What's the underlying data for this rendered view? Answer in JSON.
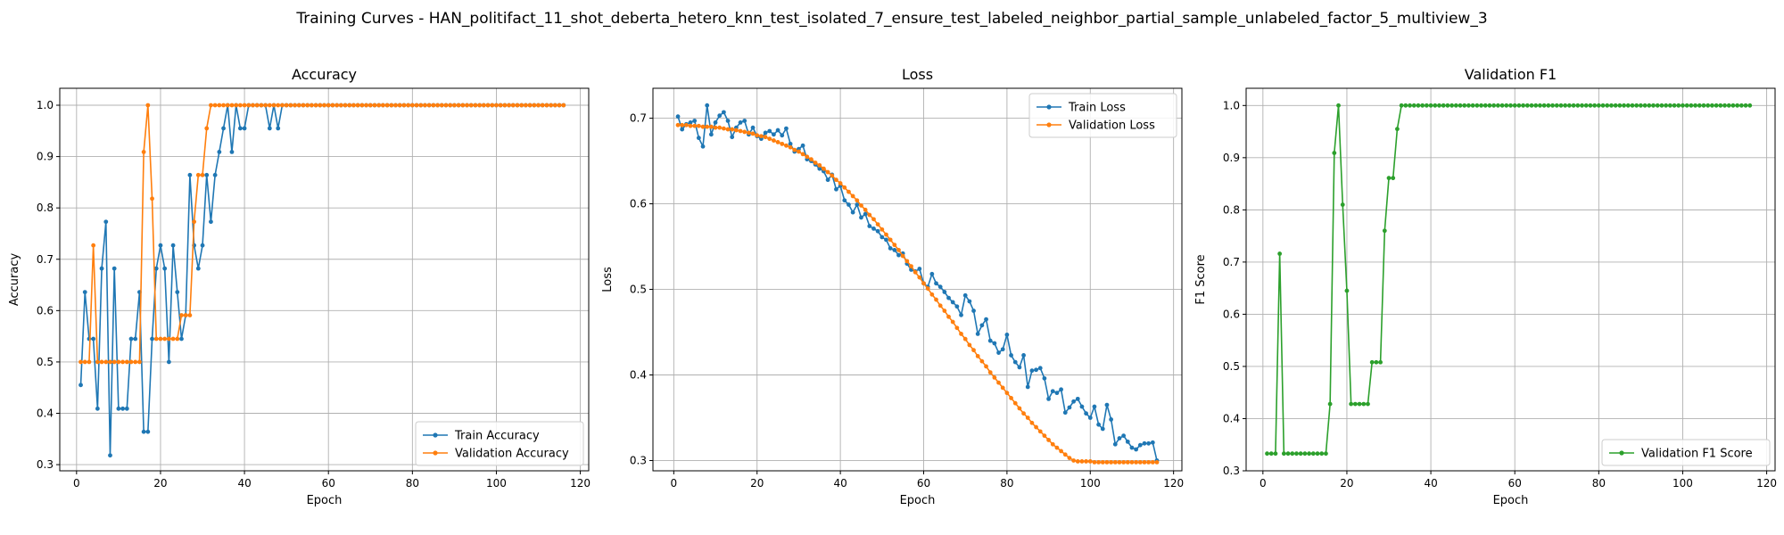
{
  "figure": {
    "title": "Training Curves - HAN_politifact_11_shot_deberta_hetero_knn_test_isolated_7_ensure_test_labeled_neighbor_partial_sample_unlabeled_factor_5_multiview_3"
  },
  "chart_data": [
    {
      "type": "line",
      "title": "Accuracy",
      "xlabel": "Epoch",
      "ylabel": "Accuracy",
      "xlim": [
        -4,
        122
      ],
      "ylim": [
        0.288,
        1.033
      ],
      "xticks": [
        0,
        20,
        40,
        60,
        80,
        100,
        120
      ],
      "yticks": [
        0.3,
        0.4,
        0.5,
        0.6,
        0.7,
        0.8,
        0.9,
        1.0
      ],
      "ytick_labels": [
        "0.3",
        "0.4",
        "0.5",
        "0.6",
        "0.7",
        "0.8",
        "0.9",
        "1.0"
      ],
      "grid": true,
      "legend_position": "lower-right",
      "series": [
        {
          "name": "Train Accuracy",
          "color": "#1f77b4",
          "values": [
            0.455,
            0.636,
            0.545,
            0.545,
            0.409,
            0.682,
            0.773,
            0.318,
            0.682,
            0.409,
            0.409,
            0.409,
            0.545,
            0.545,
            0.636,
            0.364,
            0.364,
            0.545,
            0.682,
            0.727,
            0.682,
            0.5,
            0.727,
            0.636,
            0.545,
            0.591,
            0.864,
            0.727,
            0.682,
            0.727,
            0.864,
            0.773,
            0.864,
            0.909,
            0.955,
            1.0,
            0.909,
            1.0,
            0.955,
            0.955,
            1.0,
            1.0,
            1.0,
            1.0,
            1.0,
            0.955,
            1.0,
            0.955,
            1.0,
            1.0,
            1.0,
            1.0,
            1.0,
            1.0,
            1.0,
            1.0,
            1.0,
            1.0,
            1.0,
            1.0,
            1.0,
            1.0,
            1.0,
            1.0,
            1.0,
            1.0,
            1.0,
            1.0,
            1.0,
            1.0,
            1.0,
            1.0,
            1.0,
            1.0,
            1.0,
            1.0,
            1.0,
            1.0,
            1.0,
            1.0,
            1.0,
            1.0,
            1.0,
            1.0,
            1.0,
            1.0,
            1.0,
            1.0,
            1.0,
            1.0,
            1.0,
            1.0,
            1.0,
            1.0,
            1.0,
            1.0,
            1.0,
            1.0,
            1.0,
            1.0,
            1.0,
            1.0,
            1.0,
            1.0,
            1.0,
            1.0,
            1.0,
            1.0,
            1.0,
            1.0,
            1.0,
            1.0,
            1.0,
            1.0,
            1.0,
            1.0
          ]
        },
        {
          "name": "Validation Accuracy",
          "color": "#ff7f0e",
          "values": [
            0.5,
            0.5,
            0.5,
            0.727,
            0.5,
            0.5,
            0.5,
            0.5,
            0.5,
            0.5,
            0.5,
            0.5,
            0.5,
            0.5,
            0.5,
            0.909,
            1.0,
            0.818,
            0.545,
            0.545,
            0.545,
            0.545,
            0.545,
            0.545,
            0.591,
            0.591,
            0.591,
            0.773,
            0.864,
            0.864,
            0.955,
            1.0,
            1.0,
            1.0,
            1.0,
            1.0,
            1.0,
            1.0,
            1.0,
            1.0,
            1.0,
            1.0,
            1.0,
            1.0,
            1.0,
            1.0,
            1.0,
            1.0,
            1.0,
            1.0,
            1.0,
            1.0,
            1.0,
            1.0,
            1.0,
            1.0,
            1.0,
            1.0,
            1.0,
            1.0,
            1.0,
            1.0,
            1.0,
            1.0,
            1.0,
            1.0,
            1.0,
            1.0,
            1.0,
            1.0,
            1.0,
            1.0,
            1.0,
            1.0,
            1.0,
            1.0,
            1.0,
            1.0,
            1.0,
            1.0,
            1.0,
            1.0,
            1.0,
            1.0,
            1.0,
            1.0,
            1.0,
            1.0,
            1.0,
            1.0,
            1.0,
            1.0,
            1.0,
            1.0,
            1.0,
            1.0,
            1.0,
            1.0,
            1.0,
            1.0,
            1.0,
            1.0,
            1.0,
            1.0,
            1.0,
            1.0,
            1.0,
            1.0,
            1.0,
            1.0,
            1.0,
            1.0,
            1.0,
            1.0,
            1.0,
            1.0
          ]
        }
      ]
    },
    {
      "type": "line",
      "title": "Loss",
      "xlabel": "Epoch",
      "ylabel": "Loss",
      "xlim": [
        -5,
        122
      ],
      "ylim": [
        0.288,
        0.735
      ],
      "xticks": [
        0,
        20,
        40,
        60,
        80,
        100,
        120
      ],
      "yticks": [
        0.3,
        0.4,
        0.5,
        0.6,
        0.7
      ],
      "ytick_labels": [
        "0.3",
        "0.4",
        "0.5",
        "0.6",
        "0.7"
      ],
      "grid": true,
      "legend_position": "upper-right",
      "series": [
        {
          "name": "Train Loss",
          "color": "#1f77b4",
          "values": [
            0.702,
            0.687,
            0.693,
            0.695,
            0.697,
            0.677,
            0.667,
            0.715,
            0.681,
            0.695,
            0.703,
            0.707,
            0.697,
            0.678,
            0.689,
            0.695,
            0.697,
            0.681,
            0.689,
            0.679,
            0.676,
            0.683,
            0.685,
            0.681,
            0.686,
            0.68,
            0.688,
            0.67,
            0.661,
            0.664,
            0.668,
            0.652,
            0.65,
            0.646,
            0.641,
            0.638,
            0.628,
            0.634,
            0.617,
            0.621,
            0.604,
            0.599,
            0.59,
            0.599,
            0.584,
            0.588,
            0.574,
            0.571,
            0.568,
            0.561,
            0.558,
            0.548,
            0.546,
            0.54,
            0.542,
            0.53,
            0.523,
            0.521,
            0.524,
            0.507,
            0.503,
            0.518,
            0.507,
            0.503,
            0.497,
            0.49,
            0.485,
            0.48,
            0.47,
            0.493,
            0.486,
            0.475,
            0.448,
            0.458,
            0.465,
            0.44,
            0.437,
            0.426,
            0.43,
            0.447,
            0.423,
            0.415,
            0.409,
            0.423,
            0.386,
            0.405,
            0.406,
            0.408,
            0.396,
            0.372,
            0.381,
            0.379,
            0.383,
            0.356,
            0.362,
            0.369,
            0.372,
            0.363,
            0.355,
            0.35,
            0.363,
            0.342,
            0.337,
            0.365,
            0.348,
            0.319,
            0.326,
            0.329,
            0.322,
            0.315,
            0.313,
            0.318,
            0.32,
            0.32,
            0.321,
            0.3
          ]
        },
        {
          "name": "Validation Loss",
          "color": "#ff7f0e",
          "values": [
            0.692,
            0.692,
            0.692,
            0.691,
            0.691,
            0.691,
            0.69,
            0.69,
            0.69,
            0.689,
            0.689,
            0.688,
            0.687,
            0.687,
            0.686,
            0.685,
            0.684,
            0.683,
            0.682,
            0.68,
            0.679,
            0.678,
            0.676,
            0.674,
            0.672,
            0.67,
            0.668,
            0.666,
            0.663,
            0.661,
            0.658,
            0.655,
            0.652,
            0.648,
            0.645,
            0.641,
            0.637,
            0.633,
            0.628,
            0.624,
            0.619,
            0.614,
            0.609,
            0.604,
            0.598,
            0.593,
            0.587,
            0.582,
            0.576,
            0.57,
            0.564,
            0.558,
            0.552,
            0.546,
            0.539,
            0.533,
            0.527,
            0.52,
            0.514,
            0.507,
            0.501,
            0.494,
            0.488,
            0.481,
            0.475,
            0.468,
            0.462,
            0.455,
            0.448,
            0.442,
            0.435,
            0.429,
            0.422,
            0.416,
            0.41,
            0.403,
            0.397,
            0.391,
            0.385,
            0.379,
            0.373,
            0.367,
            0.361,
            0.355,
            0.35,
            0.344,
            0.339,
            0.334,
            0.329,
            0.324,
            0.319,
            0.315,
            0.311,
            0.307,
            0.303,
            0.3,
            0.299,
            0.299,
            0.299,
            0.299,
            0.298,
            0.298,
            0.298,
            0.298,
            0.298,
            0.298,
            0.298,
            0.298,
            0.298,
            0.298,
            0.298,
            0.298,
            0.298,
            0.298,
            0.298,
            0.298
          ]
        }
      ]
    },
    {
      "type": "line",
      "title": "Validation F1",
      "xlabel": "Epoch",
      "ylabel": "F1 Score",
      "xlim": [
        -4,
        122
      ],
      "ylim": [
        0.3,
        1.033
      ],
      "xticks": [
        0,
        20,
        40,
        60,
        80,
        100,
        120
      ],
      "yticks": [
        0.3,
        0.4,
        0.5,
        0.6,
        0.7,
        0.8,
        0.9,
        1.0
      ],
      "ytick_labels": [
        "0.3",
        "0.4",
        "0.5",
        "0.6",
        "0.7",
        "0.8",
        "0.9",
        "1.0"
      ],
      "grid": true,
      "legend_position": "lower-right",
      "series": [
        {
          "name": "Validation F1 Score",
          "color": "#2ca02c",
          "values": [
            0.333,
            0.333,
            0.333,
            0.716,
            0.333,
            0.333,
            0.333,
            0.333,
            0.333,
            0.333,
            0.333,
            0.333,
            0.333,
            0.333,
            0.333,
            0.428,
            0.909,
            1.0,
            0.81,
            0.645,
            0.428,
            0.428,
            0.428,
            0.428,
            0.428,
            0.508,
            0.508,
            0.508,
            0.76,
            0.861,
            0.861,
            0.955,
            1.0,
            1.0,
            1.0,
            1.0,
            1.0,
            1.0,
            1.0,
            1.0,
            1.0,
            1.0,
            1.0,
            1.0,
            1.0,
            1.0,
            1.0,
            1.0,
            1.0,
            1.0,
            1.0,
            1.0,
            1.0,
            1.0,
            1.0,
            1.0,
            1.0,
            1.0,
            1.0,
            1.0,
            1.0,
            1.0,
            1.0,
            1.0,
            1.0,
            1.0,
            1.0,
            1.0,
            1.0,
            1.0,
            1.0,
            1.0,
            1.0,
            1.0,
            1.0,
            1.0,
            1.0,
            1.0,
            1.0,
            1.0,
            1.0,
            1.0,
            1.0,
            1.0,
            1.0,
            1.0,
            1.0,
            1.0,
            1.0,
            1.0,
            1.0,
            1.0,
            1.0,
            1.0,
            1.0,
            1.0,
            1.0,
            1.0,
            1.0,
            1.0,
            1.0,
            1.0,
            1.0,
            1.0,
            1.0,
            1.0,
            1.0,
            1.0,
            1.0,
            1.0,
            1.0,
            1.0,
            1.0,
            1.0,
            1.0,
            1.0
          ]
        }
      ]
    }
  ]
}
